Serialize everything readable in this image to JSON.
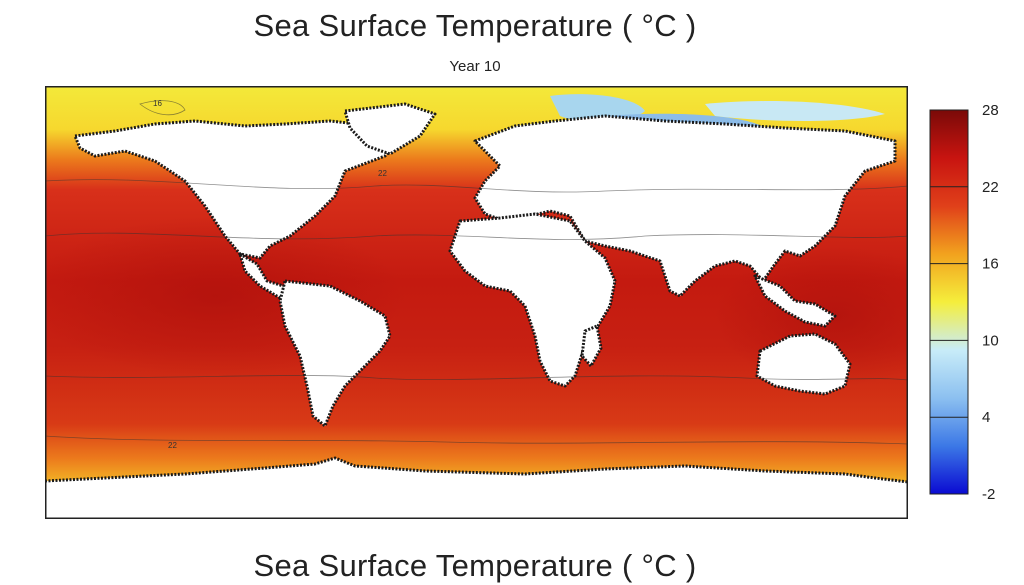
{
  "figure": {
    "title": "Sea Surface Temperature ( °C )",
    "subtitle": "Year 10",
    "bottom_title": "Sea Surface Temperature ( °C )"
  },
  "colorbar": {
    "min": -2,
    "max": 28,
    "ticks": [
      28,
      22,
      16,
      10,
      4,
      -2
    ],
    "colors": [
      "#0a0ad2",
      "#3c78e6",
      "#8cc0f0",
      "#c8ecf8",
      "#f5ee3c",
      "#f2a21e",
      "#e0401a",
      "#c81410",
      "#7a0a08"
    ]
  },
  "map": {
    "projection": "equirectangular",
    "land_color": "#ffffff",
    "contour_labels": [
      "16",
      "22",
      "22"
    ]
  }
}
